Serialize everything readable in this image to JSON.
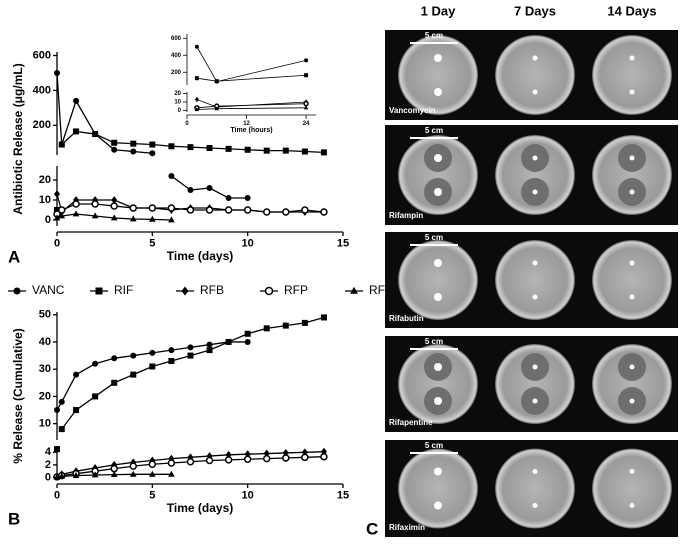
{
  "panel_labels": [
    "A",
    "B",
    "C"
  ],
  "chart_data": [
    {
      "type": "line",
      "xlabel": "Time (days)",
      "ylabel": "Antibiotic Release (μg/mL)",
      "xlim": [
        0,
        15
      ],
      "xticks": [
        0,
        5,
        10,
        15
      ],
      "x": [
        0,
        0.25,
        1,
        2,
        3,
        4,
        5,
        6,
        7,
        8,
        9,
        10,
        11,
        12,
        13,
        14
      ],
      "segments": [
        {
          "ylim": [
            30,
            620
          ],
          "yticks": [
            200,
            400,
            600
          ]
        },
        {
          "ylim": [
            -3,
            27
          ],
          "yticks": [
            0,
            10,
            20
          ]
        }
      ],
      "series": [
        {
          "name": "VANC",
          "marker": "circle",
          "color": "#000000",
          "values": [
            500,
            90,
            340,
            150,
            60,
            50,
            40,
            22,
            15,
            16,
            11,
            11,
            null,
            null,
            null,
            null
          ]
        },
        {
          "name": "RIF",
          "marker": "square",
          "color": "#000000",
          "values": [
            5,
            90,
            165,
            150,
            100,
            95,
            90,
            80,
            75,
            70,
            65,
            60,
            55,
            55,
            50,
            45
          ]
        },
        {
          "name": "RFB",
          "marker": "diamond",
          "color": "#000000",
          "values": [
            13,
            4,
            10,
            10,
            10,
            6,
            6,
            5,
            6,
            6,
            5,
            5,
            4,
            4,
            4,
            4
          ]
        },
        {
          "name": "RFP",
          "marker": "open-circle",
          "color": "#000000",
          "values": [
            3,
            5,
            8,
            8,
            7,
            6,
            6,
            6,
            5,
            5,
            5,
            5,
            4,
            4,
            5,
            4
          ]
        },
        {
          "name": "RFX",
          "marker": "triangle",
          "color": "#000000",
          "values": [
            1,
            2,
            3,
            2,
            1,
            0.5,
            0.3,
            0,
            null,
            null,
            null,
            null,
            null,
            null,
            null,
            null
          ]
        }
      ]
    },
    {
      "type": "line",
      "xlabel": "Time (hours)",
      "xlim": [
        0,
        26
      ],
      "xticks": [
        0,
        12,
        24
      ],
      "x": [
        2,
        6,
        24
      ],
      "segments": [
        {
          "ylim": [
            50,
            650
          ],
          "yticks": [
            200,
            400,
            600
          ]
        },
        {
          "ylim": [
            -2,
            22
          ],
          "yticks": [
            0,
            10,
            20
          ]
        }
      ],
      "series": [
        {
          "name": "VANC",
          "marker": "circle",
          "color": "#000000",
          "values": [
            500,
            90,
            340
          ]
        },
        {
          "name": "RIF",
          "marker": "square",
          "color": "#000000",
          "values": [
            130,
            95,
            165
          ]
        },
        {
          "name": "RFB",
          "marker": "diamond",
          "color": "#000000",
          "values": [
            13,
            4,
            10
          ]
        },
        {
          "name": "RFP",
          "marker": "open-circle",
          "color": "#000000",
          "values": [
            3,
            5,
            8
          ]
        },
        {
          "name": "RFX",
          "marker": "triangle",
          "color": "#000000",
          "values": [
            1,
            2,
            3
          ]
        }
      ]
    },
    {
      "type": "line",
      "xlabel": "Time (days)",
      "ylabel": "% Release (Cumulative)",
      "xlim": [
        0,
        15
      ],
      "xticks": [
        0,
        5,
        10,
        15
      ],
      "x": [
        0,
        0.25,
        1,
        2,
        3,
        4,
        5,
        6,
        7,
        8,
        9,
        10,
        11,
        12,
        13,
        14
      ],
      "segments": [
        {
          "ylim": [
            4,
            51
          ],
          "yticks": [
            10,
            20,
            30,
            40,
            50
          ]
        },
        {
          "ylim": [
            -0.4,
            5
          ],
          "yticks": [
            0,
            2,
            4
          ]
        }
      ],
      "series": [
        {
          "name": "VANC",
          "marker": "circle",
          "color": "#000000",
          "values": [
            15,
            18,
            28,
            32,
            34,
            35,
            36,
            37,
            38,
            39,
            40,
            40,
            null,
            null,
            null,
            null
          ]
        },
        {
          "name": "RIF",
          "marker": "square",
          "color": "#000000",
          "values": [
            4.5,
            8,
            15,
            20,
            25,
            28,
            31,
            33,
            35,
            37,
            40,
            43,
            45,
            46,
            47,
            49
          ]
        },
        {
          "name": "RFB",
          "marker": "diamond",
          "color": "#000000",
          "values": [
            0.2,
            0.5,
            1,
            1.5,
            2,
            2.4,
            2.7,
            3,
            3.2,
            3.4,
            3.6,
            3.7,
            3.8,
            3.9,
            4,
            4.1
          ]
        },
        {
          "name": "RFP",
          "marker": "open-circle",
          "color": "#000000",
          "values": [
            0.1,
            0.3,
            0.6,
            1,
            1.4,
            1.8,
            2.1,
            2.3,
            2.5,
            2.7,
            2.8,
            2.9,
            3,
            3.1,
            3.2,
            3.3
          ]
        },
        {
          "name": "RFX",
          "marker": "triangle",
          "color": "#000000",
          "values": [
            0.05,
            0.2,
            0.3,
            0.4,
            0.45,
            0.5,
            0.5,
            0.5,
            null,
            null,
            null,
            null,
            null,
            null,
            null,
            null
          ]
        }
      ]
    }
  ],
  "photo_grid": {
    "columns": [
      "1 Day",
      "7 Days",
      "14 Days"
    ],
    "rows": [
      {
        "label": "Vancomycin",
        "scale": "5 cm"
      },
      {
        "label": "Rifampin",
        "scale": "5 cm"
      },
      {
        "label": "Rifabutin",
        "scale": "5 cm"
      },
      {
        "label": "Rifapentine",
        "scale": "5 cm"
      },
      {
        "label": "Rifaximin",
        "scale": "5 cm"
      }
    ]
  }
}
